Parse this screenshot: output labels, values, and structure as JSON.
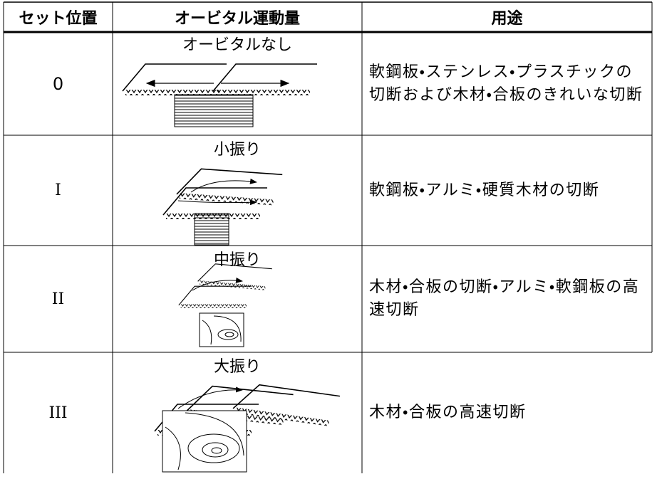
{
  "header": [
    "セット位置",
    "オービタル運動量",
    "用途"
  ],
  "rows": [
    {
      "setting": "0",
      "motion": "オービタルなし",
      "use": "軟鋼板・ステンレス・プラスチックの切断および木材・合板のきれいな切断"
    },
    {
      "setting": "I",
      "motion": "小振り",
      "use": "軟鋼板・アルミ・硬質木材の切断"
    },
    {
      "setting": "II",
      "motion": "中振り",
      "use": "木材・合板の切断・アルミ・軟鋼板の高速切断"
    },
    {
      "setting": "III",
      "motion": "大振り",
      "use": "木材・合板の高速切断"
    }
  ]
}
